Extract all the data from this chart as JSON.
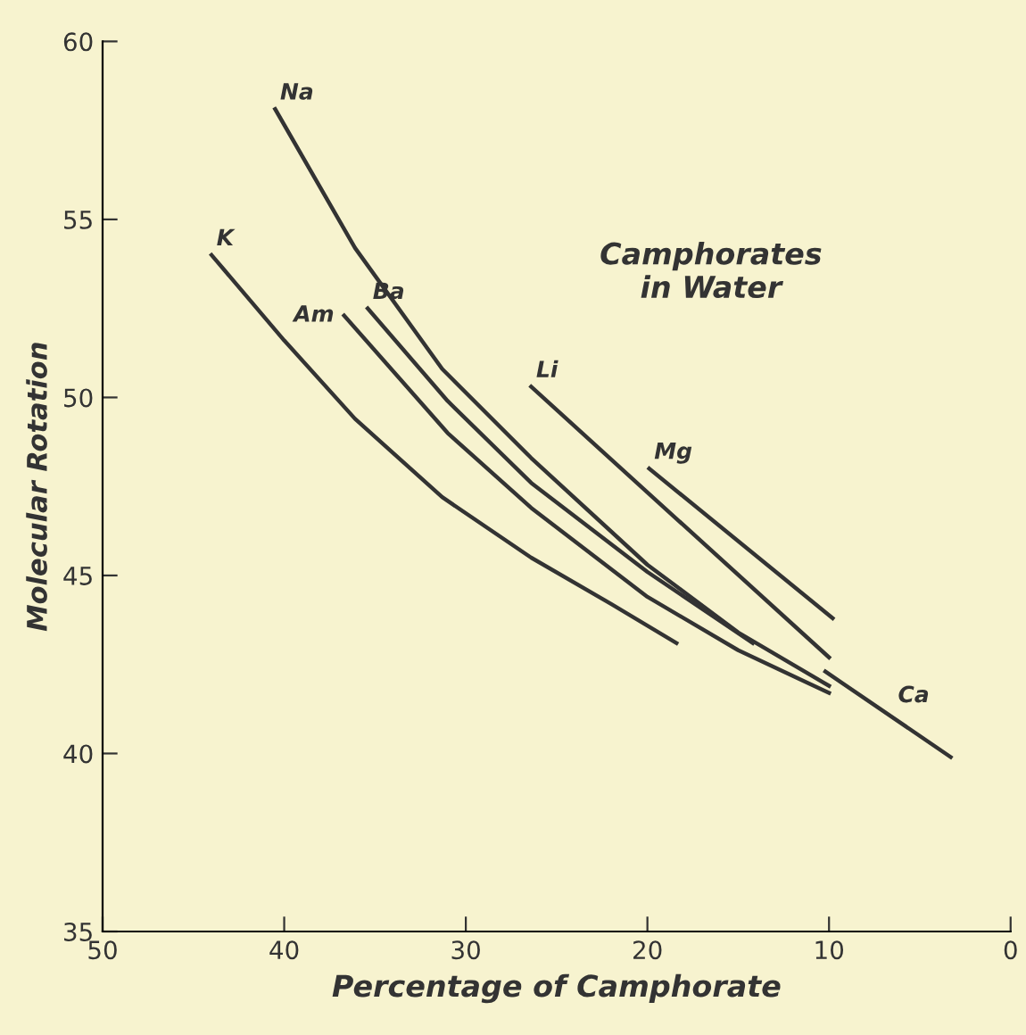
{
  "chart_data": {
    "type": "line",
    "xlabel": "Percentage of Camphorate",
    "ylabel": "Molecular Rotation",
    "annotations": [
      "Camphorates\nin Water"
    ],
    "xlim": [
      50,
      0
    ],
    "xticks": [
      50,
      40,
      30,
      20,
      10,
      0
    ],
    "ylim": [
      35,
      60
    ],
    "yticks": [
      35,
      40,
      45,
      50,
      55,
      60
    ],
    "grid": false,
    "legend": false,
    "marker": "none",
    "line_style": "solid",
    "series": [
      {
        "name": "Na",
        "color": "#333333",
        "x": [
          40.5,
          36.1,
          31.3,
          26.4,
          20,
          15,
          10
        ],
        "values": [
          58.1,
          54.2,
          50.8,
          48.3,
          45.3,
          43.4,
          41.9
        ]
      },
      {
        "name": "Ba",
        "color": "#333333",
        "x": [
          35.4,
          31,
          26.4,
          20,
          14.2
        ],
        "values": [
          52.5,
          49.9,
          47.6,
          45.1,
          43.1
        ]
      },
      {
        "name": "Am",
        "color": "#333333",
        "x": [
          36.7,
          31,
          26.4,
          20,
          15,
          10
        ],
        "values": [
          52.3,
          49.0,
          46.9,
          44.4,
          42.9,
          41.7
        ]
      },
      {
        "name": "K",
        "color": "#333333",
        "x": [
          44,
          40,
          36.1,
          31.3,
          26.4,
          22,
          18.4
        ],
        "values": [
          54.0,
          51.6,
          49.4,
          47.2,
          45.5,
          44.2,
          43.1
        ]
      },
      {
        "name": "Li",
        "color": "#333333",
        "x": [
          26.4,
          10
        ],
        "values": [
          50.3,
          42.7
        ]
      },
      {
        "name": "Mg",
        "color": "#333333",
        "x": [
          19.9,
          9.8
        ],
        "values": [
          48.0,
          43.8
        ]
      },
      {
        "name": "Ca",
        "color": "#333333",
        "x": [
          10.2,
          3.3
        ],
        "values": [
          42.3,
          39.9
        ]
      }
    ]
  }
}
